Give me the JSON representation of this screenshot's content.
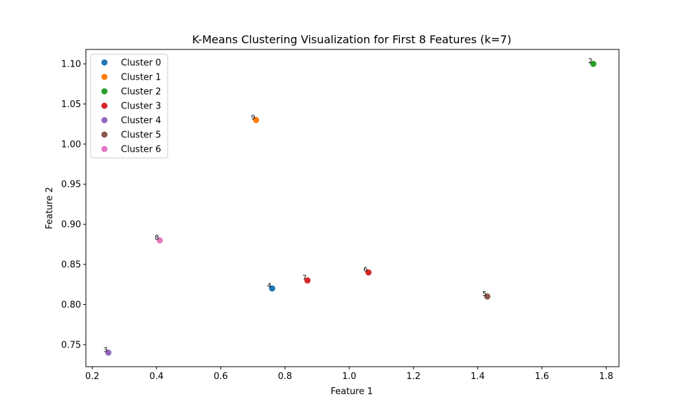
{
  "chart_data": {
    "type": "scatter",
    "title": "K-Means Clustering Visualization for First 8 Features (k=7)",
    "xlabel": "Feature 1",
    "ylabel": "Feature 2",
    "xlim": [
      0.18,
      1.84
    ],
    "ylim": [
      0.7225,
      1.118
    ],
    "xticks": [
      0.2,
      0.4,
      0.6,
      0.8,
      1.0,
      1.2,
      1.4,
      1.6,
      1.8
    ],
    "yticks": [
      0.75,
      0.8,
      0.85,
      0.9,
      0.95,
      1.0,
      1.05,
      1.1
    ],
    "xtick_labels": [
      "0.2",
      "0.4",
      "0.6",
      "0.8",
      "1.0",
      "1.2",
      "1.4",
      "1.6",
      "1.8"
    ],
    "ytick_labels": [
      "0.75",
      "0.80",
      "0.85",
      "0.90",
      "0.95",
      "1.00",
      "1.05",
      "1.10"
    ],
    "grid": false,
    "legend_position": "top-left",
    "series": [
      {
        "name": "Cluster 0",
        "color": "#1f77b4",
        "points": [
          {
            "x": 0.76,
            "y": 0.82,
            "label": "4"
          }
        ]
      },
      {
        "name": "Cluster 1",
        "color": "#ff7f0e",
        "points": [
          {
            "x": 0.71,
            "y": 1.03,
            "label": "9"
          }
        ]
      },
      {
        "name": "Cluster 2",
        "color": "#2ca02c",
        "points": [
          {
            "x": 1.76,
            "y": 1.1,
            "label": "2"
          }
        ]
      },
      {
        "name": "Cluster 3",
        "color": "#d62728",
        "points": [
          {
            "x": 0.87,
            "y": 0.83,
            "label": "7"
          },
          {
            "x": 1.06,
            "y": 0.84,
            "label": "6"
          }
        ]
      },
      {
        "name": "Cluster 4",
        "color": "#9467bd",
        "points": [
          {
            "x": 0.25,
            "y": 0.74,
            "label": "3"
          }
        ]
      },
      {
        "name": "Cluster 5",
        "color": "#8c564b",
        "points": [
          {
            "x": 1.43,
            "y": 0.81,
            "label": "5"
          }
        ]
      },
      {
        "name": "Cluster 6",
        "color": "#e377c2",
        "points": [
          {
            "x": 0.41,
            "y": 0.88,
            "label": "8"
          }
        ]
      }
    ]
  }
}
